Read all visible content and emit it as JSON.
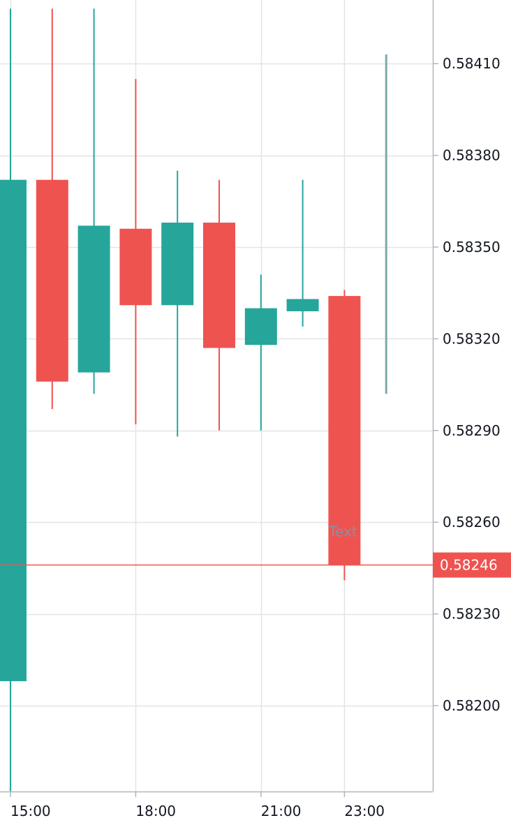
{
  "chart_data": {
    "type": "candlestick",
    "title": "",
    "xlabel": "",
    "ylabel": "",
    "grid": true,
    "ylim": [
      0.58172,
      0.58428
    ],
    "x_ticks": [
      {
        "label": "15:00",
        "index": 0
      },
      {
        "label": "18:00",
        "index": 3
      },
      {
        "label": "21:00",
        "index": 6
      },
      {
        "label": "23:00",
        "index": 8
      }
    ],
    "y_ticks": [
      0.582,
      0.5823,
      0.5826,
      0.5829,
      0.5832,
      0.5835,
      0.5838,
      0.5841
    ],
    "y_tick_labels": [
      "0.58200",
      "0.58230",
      "0.58260",
      "0.58290",
      "0.58320",
      "0.58350",
      "0.58380",
      "0.58410"
    ],
    "candles": [
      {
        "open": 0.58208,
        "high": 0.58428,
        "low": 0.58172,
        "close": 0.58372
      },
      {
        "open": 0.58372,
        "high": 0.58428,
        "low": 0.58297,
        "close": 0.58306
      },
      {
        "open": 0.58309,
        "high": 0.58428,
        "low": 0.58302,
        "close": 0.58357
      },
      {
        "open": 0.58356,
        "high": 0.58405,
        "low": 0.58292,
        "close": 0.58331
      },
      {
        "open": 0.58331,
        "high": 0.58375,
        "low": 0.58288,
        "close": 0.58358
      },
      {
        "open": 0.58358,
        "high": 0.58372,
        "low": 0.5829,
        "close": 0.58317
      },
      {
        "open": 0.58318,
        "high": 0.58341,
        "low": 0.5829,
        "close": 0.5833
      },
      {
        "open": 0.58329,
        "high": 0.58372,
        "low": 0.58324,
        "close": 0.58333
      },
      {
        "open": 0.58334,
        "high": 0.58336,
        "low": 0.58241,
        "close": 0.58246
      },
      {
        "open": 0.58413,
        "high": 0.58413,
        "low": 0.58302,
        "close": 0.58413
      }
    ],
    "up_color": "#26a69a",
    "down_color": "#ef5350",
    "last_series_color": "#7aabaa",
    "last_price": {
      "value": 0.58246,
      "label": "0.58246",
      "color": "#ef5350"
    },
    "annotation": {
      "text": "Text",
      "candle_index": 8,
      "price": 0.58257
    }
  }
}
